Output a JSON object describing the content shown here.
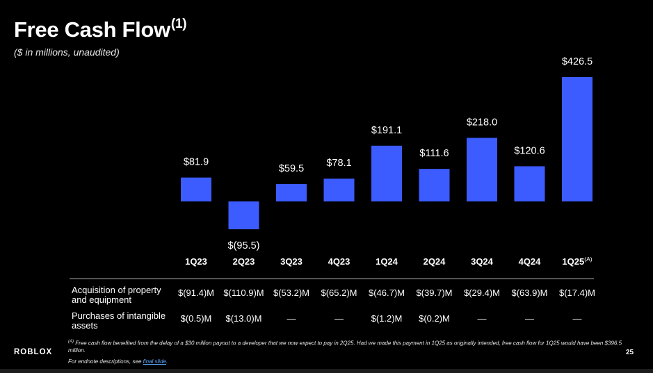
{
  "header": {
    "title": "Free Cash Flow",
    "title_sup": "(1)",
    "subtitle": "($ in millions, unaudited)"
  },
  "chart_data": {
    "type": "bar",
    "categories": [
      "1Q23",
      "2Q23",
      "3Q23",
      "4Q23",
      "1Q24",
      "2Q24",
      "3Q24",
      "4Q24",
      "1Q25"
    ],
    "category_superscripts": [
      "",
      "",
      "",
      "",
      "",
      "",
      "",
      "",
      "(A)"
    ],
    "values": [
      81.9,
      -95.5,
      59.5,
      78.1,
      191.1,
      111.6,
      218.0,
      120.6,
      426.5
    ],
    "data_labels": [
      "$81.9",
      "$(95.5)",
      "$59.5",
      "$78.1",
      "$191.1",
      "$111.6",
      "$218.0",
      "$120.6",
      "$426.5"
    ],
    "bar_color": "#3d5cff",
    "grid": false,
    "legend": "none"
  },
  "table": {
    "rows": [
      {
        "label": "Acquisition of property and equipment",
        "cells": [
          "$(91.4)M",
          "$(110.9)M",
          "$(53.2)M",
          "$(65.2)M",
          "$(46.7)M",
          "$(39.7)M",
          "$(29.4)M",
          "$(63.9)M",
          "$(17.4)M"
        ]
      },
      {
        "label": "Purchases of intangible assets",
        "cells": [
          "$(0.5)M",
          "$(13.0)M",
          "—",
          "—",
          "$(1.2)M",
          "$(0.2)M",
          "—",
          "—",
          "—"
        ]
      }
    ]
  },
  "footnote": {
    "marker": "(A)",
    "text": " Free cash flow benefited from the delay of a $30 million payout to a developer that we now expect to pay in 2Q25. Had we made this payment in 1Q25 as originally intended, free cash flow for 1Q25 would have been $396.5 million."
  },
  "endnote": {
    "prefix": "For endnote descriptions, see ",
    "link": "final slide",
    "suffix": "."
  },
  "footer": {
    "logo": "ROBLOX",
    "page_number": "25"
  }
}
